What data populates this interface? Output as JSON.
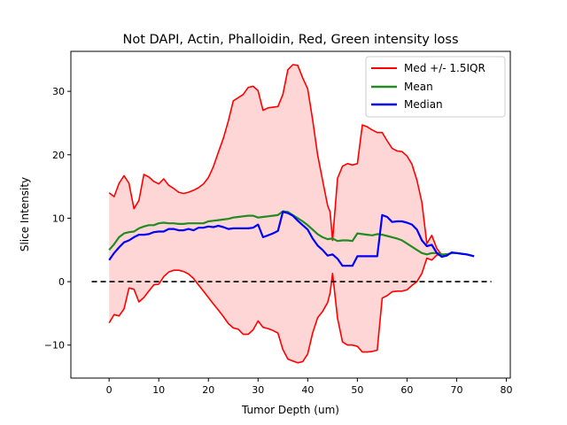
{
  "chart_data": {
    "type": "line",
    "title": "Not DAPI, Actin, Phalloidin, Red, Green intensity loss",
    "xlabel": "Tumor Depth (um)",
    "ylabel": "Slice Intensity",
    "xlim": [
      -7.7,
      80.8
    ],
    "ylim": [
      -15.2,
      36.3
    ],
    "xticks": [
      0,
      10,
      20,
      30,
      40,
      50,
      60,
      70,
      80
    ],
    "yticks": [
      -10,
      0,
      10,
      20,
      30
    ],
    "grid": false,
    "legend_position": "top-right",
    "legend": [
      {
        "label": "Med +/- 1.5IQR",
        "color": "#ff0000"
      },
      {
        "label": "Mean",
        "color": "#228b22"
      },
      {
        "label": "Median",
        "color": "#0000ff"
      }
    ],
    "zero_line": {
      "y": 0,
      "x_range": [
        -3.5,
        77
      ],
      "style": "dashed",
      "color": "#000000"
    },
    "series": [
      {
        "name": "Med +/- 1.5IQR",
        "color": "#ff0000",
        "role": "upper",
        "x": [
          0,
          1,
          2,
          3,
          4,
          5,
          6,
          7,
          8,
          9,
          10,
          11,
          12,
          13,
          14,
          15,
          16,
          17,
          18,
          19,
          20,
          21,
          22,
          23,
          24,
          25,
          26,
          27,
          28,
          29,
          30,
          31,
          32,
          33,
          34,
          35,
          36,
          37,
          38,
          39,
          40,
          41,
          42,
          43,
          44,
          44.5,
          45,
          46,
          47,
          48,
          49,
          50,
          51,
          52,
          53,
          54,
          55,
          56,
          57,
          58,
          59,
          60,
          61,
          62,
          63,
          64,
          65,
          66,
          67,
          68
        ],
        "y": [
          14,
          13.4,
          15.5,
          16.7,
          15.5,
          11.5,
          12.8,
          16.9,
          16.5,
          15.8,
          15.4,
          16.2,
          15.2,
          14.7,
          14.1,
          13.9,
          14.1,
          14.4,
          14.8,
          15.4,
          16.4,
          18.1,
          20.4,
          22.6,
          25.3,
          28.5,
          29,
          29.5,
          30.6,
          30.8,
          30.1,
          27,
          27.4,
          27.5,
          27.6,
          29.5,
          33.4,
          34.2,
          34.1,
          32.1,
          30.4,
          25.5,
          20,
          16,
          12,
          11,
          6.5,
          16.3,
          18.2,
          18.6,
          18.4,
          18.6,
          24.7,
          24.4,
          23.9,
          23.5,
          23.5,
          22.2,
          21,
          20.6,
          20.5,
          19.8,
          18.5,
          16,
          12.5,
          6,
          7.3,
          5.2,
          4.2,
          4.2
        ]
      },
      {
        "name": "Med +/- 1.5IQR",
        "color": "#ff0000",
        "role": "lower",
        "x": [
          0,
          1,
          2,
          3,
          4,
          5,
          6,
          7,
          8,
          9,
          10,
          11,
          12,
          13,
          14,
          15,
          16,
          17,
          18,
          19,
          20,
          21,
          22,
          23,
          24,
          25,
          26,
          27,
          28,
          29,
          30,
          31,
          32,
          33,
          34,
          35,
          36,
          37,
          38,
          39,
          40,
          41,
          42,
          43,
          44,
          44.5,
          45,
          46,
          47,
          48,
          49,
          50,
          51,
          52,
          53,
          54,
          55,
          56,
          57,
          58,
          59,
          60,
          61,
          62,
          63,
          64,
          65,
          66,
          67,
          68
        ],
        "y": [
          -6.5,
          -5.2,
          -5.4,
          -4.3,
          -1,
          -1.2,
          -3.2,
          -2.5,
          -1.5,
          -0.5,
          -0.4,
          0.8,
          1.5,
          1.8,
          1.8,
          1.6,
          1.2,
          0.5,
          -0.5,
          -1.5,
          -2.5,
          -3.5,
          -4.5,
          -5.5,
          -6.6,
          -7.3,
          -7.5,
          -8.3,
          -8.3,
          -7.6,
          -6.2,
          -7.2,
          -7.4,
          -7.7,
          -8.1,
          -10.7,
          -12.2,
          -12.5,
          -12.8,
          -12.6,
          -11.4,
          -8.1,
          -5.7,
          -4.7,
          -3.3,
          -1.8,
          1.3,
          -5.8,
          -9.5,
          -10,
          -10,
          -10.2,
          -11.1,
          -11.1,
          -11,
          -10.8,
          -2.6,
          -2.2,
          -1.6,
          -1.5,
          -1.5,
          -1.3,
          -0.6,
          0,
          1.3,
          3.7,
          3.4,
          4.2,
          4.2,
          4.4
        ]
      },
      {
        "name": "Mean",
        "color": "#228b22",
        "x": [
          0,
          1,
          2,
          3,
          4,
          5,
          6,
          7,
          8,
          9,
          10,
          11,
          12,
          13,
          14,
          15,
          16,
          17,
          18,
          19,
          20,
          21,
          22,
          23,
          24,
          25,
          26,
          27,
          28,
          29,
          30,
          31,
          32,
          33,
          34,
          35,
          36,
          37,
          38,
          39,
          40,
          41,
          42,
          43,
          44,
          45,
          46,
          47,
          48,
          49,
          50,
          51,
          52,
          53,
          54,
          55,
          56,
          57,
          58,
          59,
          60,
          61,
          62,
          63,
          64,
          65,
          66,
          67,
          68,
          69,
          70,
          71,
          72,
          73,
          73.5
        ],
        "y": [
          5,
          5.9,
          7,
          7.6,
          7.8,
          7.9,
          8.4,
          8.7,
          8.9,
          8.9,
          9.2,
          9.3,
          9.2,
          9.2,
          9.1,
          9.1,
          9.2,
          9.2,
          9.2,
          9.2,
          9.5,
          9.6,
          9.7,
          9.8,
          9.9,
          10.1,
          10.2,
          10.3,
          10.4,
          10.4,
          10.1,
          10.2,
          10.3,
          10.4,
          10.5,
          11.1,
          11,
          10.5,
          10,
          9.5,
          8.9,
          8.2,
          7.5,
          7,
          6.7,
          6.8,
          6.4,
          6.5,
          6.5,
          6.4,
          7.6,
          7.5,
          7.4,
          7.3,
          7.5,
          7.4,
          7.2,
          7,
          6.8,
          6.5,
          6,
          5.5,
          5,
          4.5,
          4.3,
          4.5,
          4.5,
          4.3,
          4.3,
          4.5,
          4.5,
          4.4,
          4.3,
          4.1,
          4
        ]
      },
      {
        "name": "Median",
        "color": "#0000ff",
        "x": [
          0,
          1,
          2,
          3,
          4,
          5,
          6,
          7,
          8,
          9,
          10,
          11,
          12,
          13,
          14,
          15,
          16,
          17,
          18,
          19,
          20,
          21,
          22,
          23,
          24,
          25,
          26,
          27,
          28,
          29,
          30,
          31,
          32,
          33,
          34,
          35,
          36,
          37,
          38,
          39,
          40,
          41,
          42,
          43,
          44,
          45,
          46,
          47,
          48,
          49,
          50,
          51,
          52,
          53,
          54,
          55,
          56,
          57,
          58,
          59,
          60,
          61,
          62,
          63,
          64,
          65,
          66,
          67,
          68,
          69,
          70,
          71,
          72,
          73,
          73.5
        ],
        "y": [
          3.4,
          4.5,
          5.4,
          6.2,
          6.5,
          7,
          7.4,
          7.4,
          7.5,
          7.8,
          7.9,
          7.9,
          8.3,
          8.3,
          8.1,
          8.1,
          8.3,
          8.1,
          8.5,
          8.5,
          8.7,
          8.6,
          8.8,
          8.6,
          8.3,
          8.4,
          8.4,
          8.4,
          8.4,
          8.5,
          9,
          7,
          7.3,
          7.6,
          8,
          11,
          10.8,
          10.4,
          9.6,
          8.9,
          8.2,
          6.8,
          5.7,
          5,
          4.1,
          4.3,
          3.6,
          2.5,
          2.5,
          2.5,
          4,
          4,
          4,
          4,
          4,
          10.5,
          10.2,
          9.4,
          9.5,
          9.5,
          9.3,
          9,
          8.2,
          6.5,
          5.6,
          5.8,
          4.5,
          3.9,
          4.1,
          4.6,
          4.5,
          4.4,
          4.3,
          4.1,
          4
        ]
      }
    ]
  }
}
